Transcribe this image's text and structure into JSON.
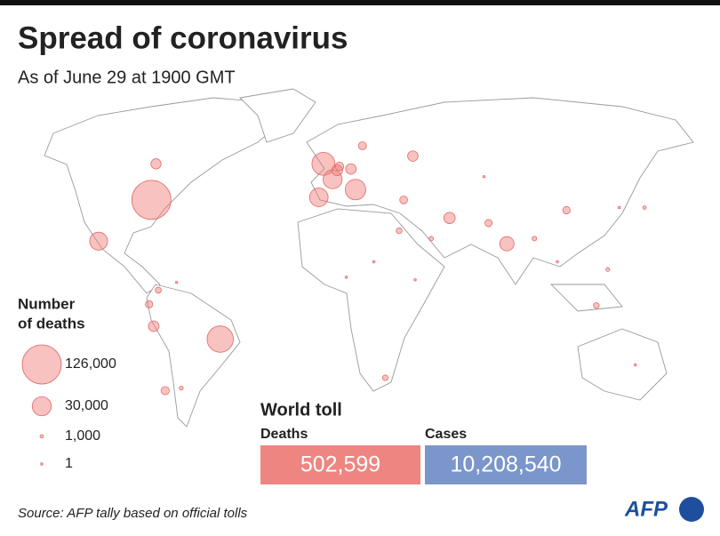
{
  "title": "Spread of coronavirus",
  "subtitle": "As of June 29 at 1900 GMT",
  "legend": {
    "title_line1": "Number",
    "title_line2": "of deaths",
    "items": [
      {
        "value": 126000,
        "label": "126,000"
      },
      {
        "value": 30000,
        "label": "30,000"
      },
      {
        "value": 1000,
        "label": "1,000"
      },
      {
        "value": 1,
        "label": "1"
      }
    ]
  },
  "bubbles": [
    {
      "lon": -77,
      "lat": 39,
      "deaths": 126000
    },
    {
      "lon": -47,
      "lat": -15,
      "deaths": 57000
    },
    {
      "lon": -2,
      "lat": 53,
      "deaths": 43500
    },
    {
      "lon": 12,
      "lat": 43,
      "deaths": 34700
    },
    {
      "lon": 2,
      "lat": 47,
      "deaths": 29800
    },
    {
      "lon": -4,
      "lat": 40,
      "deaths": 28300
    },
    {
      "lon": -100,
      "lat": 23,
      "deaths": 26600
    },
    {
      "lon": 78,
      "lat": 22,
      "deaths": 16800
    },
    {
      "lon": 53,
      "lat": 32,
      "deaths": 10500
    },
    {
      "lon": 4,
      "lat": 50.5,
      "deaths": 9700
    },
    {
      "lon": -76,
      "lat": -10,
      "deaths": 9300
    },
    {
      "lon": 37,
      "lat": 56,
      "deaths": 9000
    },
    {
      "lon": 10,
      "lat": 51,
      "deaths": 9000
    },
    {
      "lon": -75,
      "lat": 53,
      "deaths": 8600
    },
    {
      "lon": 5,
      "lat": 52,
      "deaths": 6100
    },
    {
      "lon": -71,
      "lat": -35,
      "deaths": 5600
    },
    {
      "lon": 15,
      "lat": 60,
      "deaths": 5300
    },
    {
      "lon": 33,
      "lat": 39,
      "deaths": 5100
    },
    {
      "lon": 104,
      "lat": 35,
      "deaths": 4600
    },
    {
      "lon": -78,
      "lat": -1.5,
      "deaths": 4500
    },
    {
      "lon": 70,
      "lat": 30,
      "deaths": 4300
    },
    {
      "lon": -74,
      "lat": 4,
      "deaths": 3000
    },
    {
      "lon": 31,
      "lat": 27,
      "deaths": 2800
    },
    {
      "lon": 117,
      "lat": -2,
      "deaths": 2800
    },
    {
      "lon": 25,
      "lat": -30,
      "deaths": 2500
    },
    {
      "lon": 90,
      "lat": 24,
      "deaths": 1800
    },
    {
      "lon": 45,
      "lat": 24,
      "deaths": 1600
    },
    {
      "lon": -64,
      "lat": -34,
      "deaths": 1300
    },
    {
      "lon": 122,
      "lat": 12,
      "deaths": 1200
    },
    {
      "lon": 138,
      "lat": 36,
      "deaths": 970
    },
    {
      "lon": 134,
      "lat": -25,
      "deaths": 104
    },
    {
      "lon": 8,
      "lat": 9,
      "deaths": 500
    },
    {
      "lon": 20,
      "lat": 15,
      "deaths": 70
    },
    {
      "lon": 38,
      "lat": 8,
      "deaths": 100
    },
    {
      "lon": 100,
      "lat": 15,
      "deaths": 58
    },
    {
      "lon": -66,
      "lat": 7,
      "deaths": 25
    },
    {
      "lon": 127,
      "lat": 36,
      "deaths": 282
    },
    {
      "lon": 68,
      "lat": 48,
      "deaths": 100
    }
  ],
  "world_toll": {
    "title": "World toll",
    "deaths_label": "Deaths",
    "deaths": "502,599",
    "cases_label": "Cases",
    "cases": "10,208,540"
  },
  "source": "Source: AFP tally based on official tolls",
  "logo": "AFP"
}
